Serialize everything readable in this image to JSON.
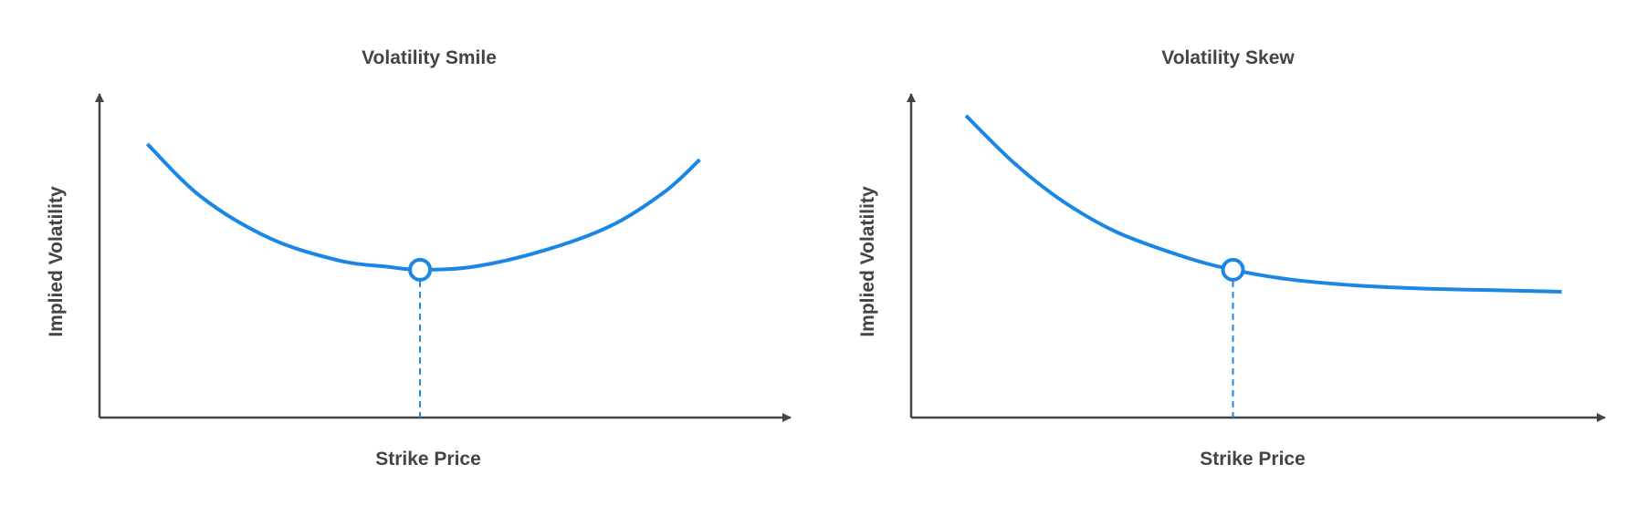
{
  "charts": [
    {
      "title": "Volatility Smile",
      "xlabel": "Strike Price",
      "ylabel": "Implied Volatility"
    },
    {
      "title": "Volatility Skew",
      "xlabel": "Strike Price",
      "ylabel": "Implied Volatility"
    }
  ],
  "chart_data": [
    {
      "type": "line",
      "title": "Volatility Smile",
      "xlabel": "Strike Price",
      "ylabel": "Implied Volatility",
      "tick_labels": "none",
      "grid": false,
      "xlim": [
        0,
        1
      ],
      "ylim": [
        0,
        1
      ],
      "series": [
        {
          "x": [
            0.07,
            0.15,
            0.25,
            0.35,
            0.42,
            0.47,
            0.55,
            0.65,
            0.75,
            0.83,
            0.88
          ],
          "values": [
            0.87,
            0.7,
            0.57,
            0.5,
            0.48,
            0.47,
            0.48,
            0.53,
            0.61,
            0.72,
            0.82
          ]
        }
      ],
      "marker": {
        "x": 0.47,
        "y": 0.47,
        "dashed_drop_line": true
      },
      "colors": {
        "line": "#1a87e6",
        "axis": "#444444"
      }
    },
    {
      "type": "line",
      "title": "Volatility Skew",
      "xlabel": "Strike Price",
      "ylabel": "Implied Volatility",
      "tick_labels": "none",
      "grid": false,
      "xlim": [
        0,
        1
      ],
      "ylim": [
        0,
        1
      ],
      "series": [
        {
          "x": [
            0.08,
            0.15,
            0.22,
            0.3,
            0.4,
            0.47,
            0.55,
            0.65,
            0.75,
            0.85,
            0.95
          ],
          "values": [
            0.96,
            0.81,
            0.69,
            0.59,
            0.51,
            0.47,
            0.44,
            0.42,
            0.41,
            0.405,
            0.4
          ]
        }
      ],
      "marker": {
        "x": 0.47,
        "y": 0.47,
        "dashed_drop_line": true
      },
      "colors": {
        "line": "#1a87e6",
        "axis": "#444444"
      }
    }
  ]
}
